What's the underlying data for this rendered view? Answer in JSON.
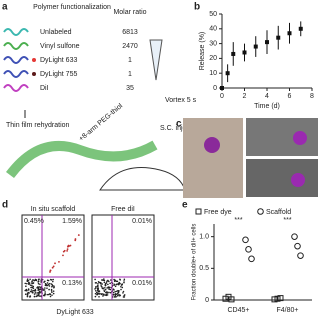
{
  "panel_a": {
    "label": "a",
    "column_headers": [
      "Polymer functionalization",
      "Molar ratio"
    ],
    "rows": [
      [
        "Unlabeled",
        "6813"
      ],
      [
        "Vinyl sulfone",
        "2470"
      ],
      [
        "DyLight 633",
        "1"
      ],
      [
        "DyLight 755",
        "1"
      ],
      [
        "DiI",
        "35"
      ]
    ],
    "step_film": "Thin film rehydration",
    "step_peg": "+8-arm PEG-thiol",
    "step_vortex": "Vortex 5 s",
    "step_injection": "S.C. injection"
  },
  "panel_c": {
    "label": "c"
  },
  "panel_d": {
    "label": "d",
    "plots": [
      {
        "title": "In situ scaffold",
        "quadrants": [
          "0.45%",
          "1.59%",
          "0.13%"
        ]
      },
      {
        "title": "Free diI",
        "quadrants": [
          "0.01%",
          "0.01%"
        ]
      }
    ],
    "x_label": "DyLight 633"
  },
  "chart_data": [
    {
      "type": "line",
      "label": "b",
      "x_label": "Time (d)",
      "y_label": "Release (%)",
      "x": [
        0,
        0.5,
        1,
        2,
        3,
        4,
        5,
        6,
        7
      ],
      "values": [
        0,
        10,
        23,
        24,
        28,
        31,
        34,
        37,
        40
      ],
      "errors": [
        1,
        6,
        8,
        6,
        7,
        8,
        8,
        7,
        5
      ],
      "xlim": [
        0,
        8
      ],
      "xticks": [
        0,
        2,
        4,
        6,
        8
      ],
      "ylim": [
        0,
        50
      ],
      "yticks": [
        0,
        10,
        20,
        30,
        40,
        50
      ],
      "color": "#111"
    },
    {
      "type": "dot",
      "label": "e",
      "y_label": "Fraction double+ of diI+ cells",
      "categories": [
        "CD45+",
        "F4/80+"
      ],
      "series": [
        {
          "name": "Free dye",
          "marker": "square",
          "values": [
            [
              0.02,
              0.05,
              0.01
            ],
            [
              0.01,
              0.02,
              0.03
            ]
          ]
        },
        {
          "name": "Scaffold",
          "marker": "circle",
          "values": [
            [
              0.95,
              0.8,
              0.65
            ],
            [
              1.0,
              0.85,
              0.7
            ]
          ]
        }
      ],
      "annotations": [
        "***",
        "***"
      ],
      "ylim": [
        0,
        1.2
      ],
      "yticks": [
        0,
        0.5,
        {
          "value": 1,
          "label": "1.0"
        }
      ]
    }
  ]
}
